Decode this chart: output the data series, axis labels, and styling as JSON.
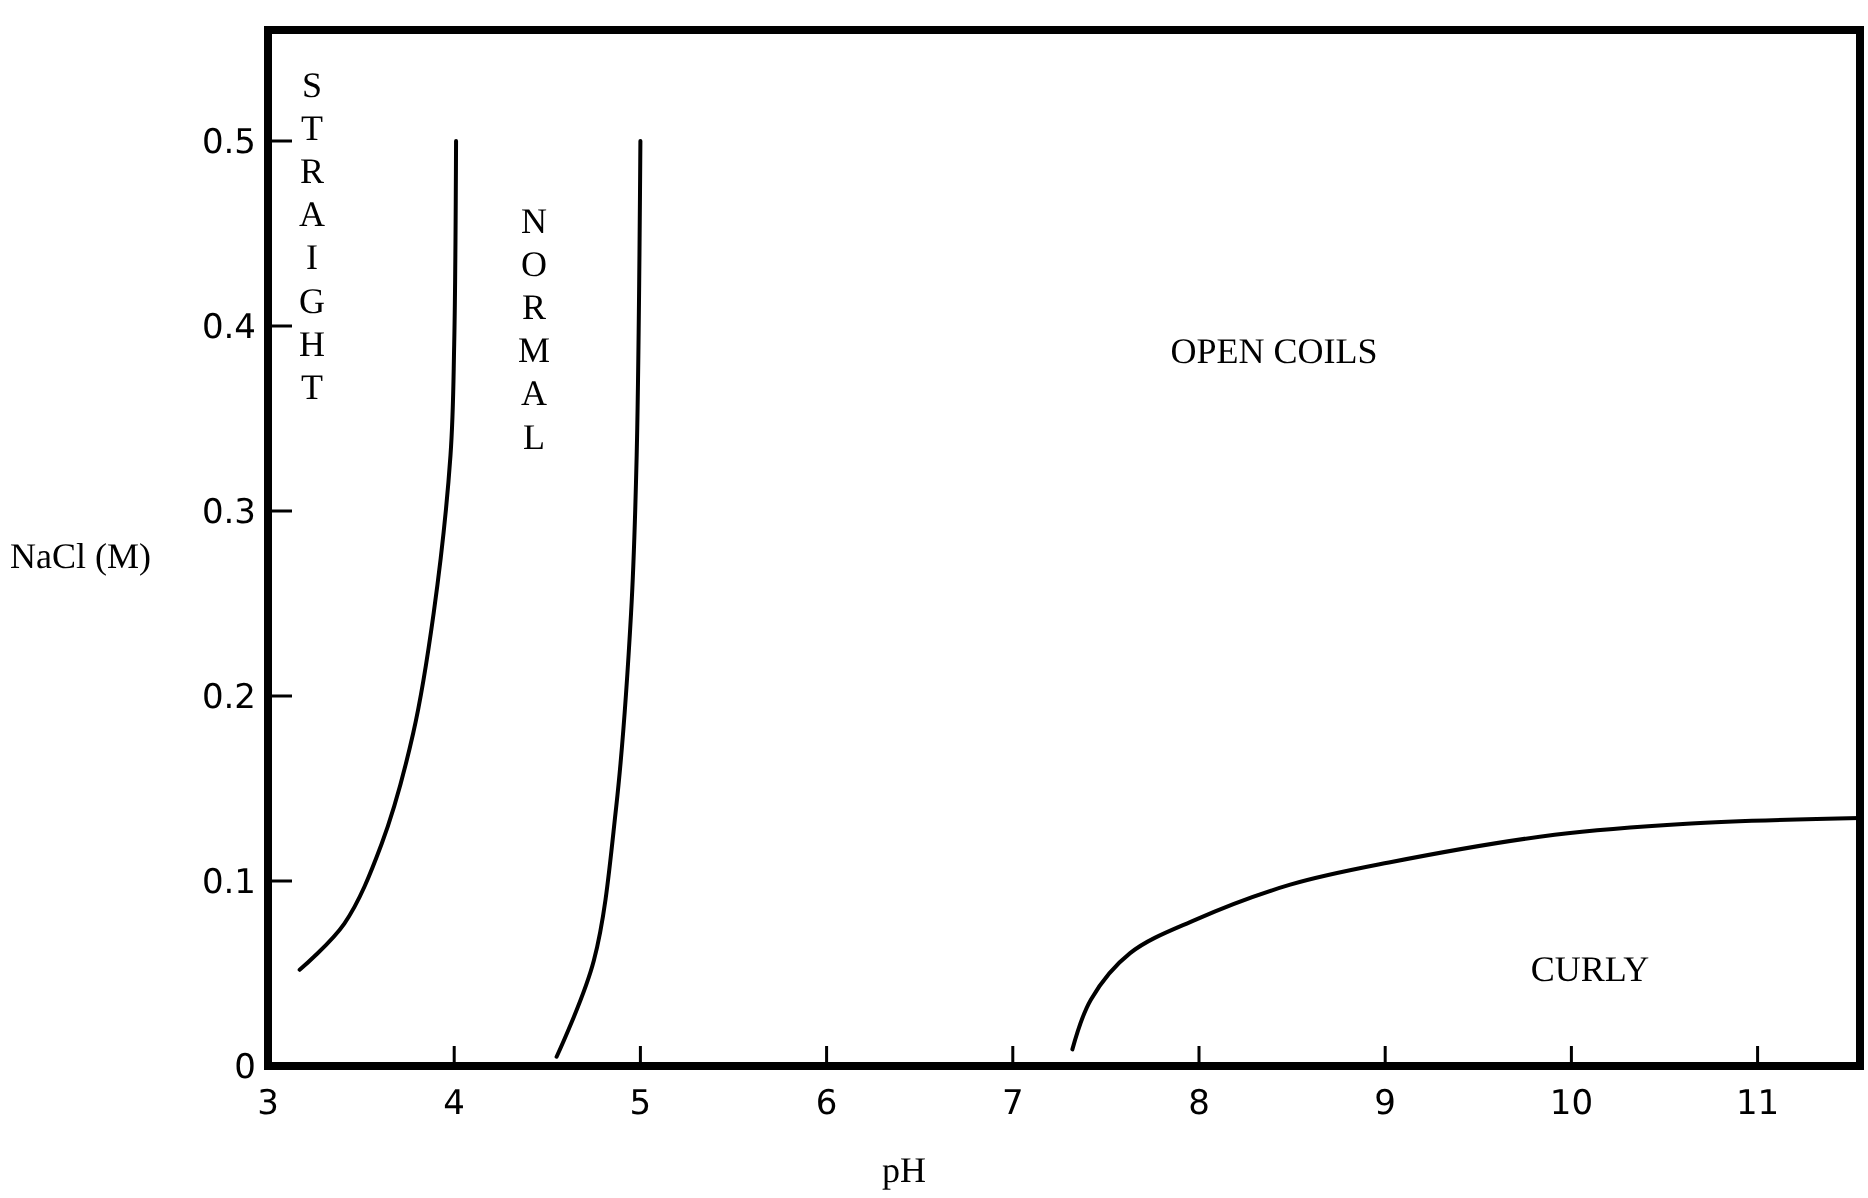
{
  "chart_data": {
    "type": "line",
    "xlabel": "pH",
    "ylabel": "NaCl (M)",
    "xlim": [
      3,
      11.55
    ],
    "ylim": [
      0,
      0.56
    ],
    "xticks": [
      3,
      4,
      5,
      6,
      7,
      8,
      9,
      10,
      11
    ],
    "yticks": [
      0,
      0.1,
      0.2,
      0.3,
      0.4,
      0.5
    ],
    "grid": false,
    "marker": "none",
    "line_style": "solid",
    "series": [
      {
        "color": "#000000",
        "x": [
          3.17,
          3.41,
          3.61,
          3.78,
          3.89,
          3.98,
          4.0,
          4.01
        ],
        "values": [
          0.052,
          0.077,
          0.12,
          0.18,
          0.245,
          0.33,
          0.39,
          0.5
        ]
      },
      {
        "color": "#000000",
        "x": [
          4.55,
          4.75,
          4.87,
          4.95,
          4.98,
          5.0
        ],
        "values": [
          0.005,
          0.057,
          0.14,
          0.245,
          0.33,
          0.5
        ]
      },
      {
        "color": "#000000",
        "x": [
          7.32,
          7.42,
          7.63,
          7.98,
          8.49,
          9.02,
          9.91,
          10.62,
          11.55
        ],
        "values": [
          0.009,
          0.036,
          0.061,
          0.079,
          0.098,
          0.11,
          0.125,
          0.131,
          0.134
        ]
      }
    ],
    "annotations": [
      "STRAIGHT",
      "NORMAL",
      "OPEN COILS",
      "CURLY"
    ]
  }
}
